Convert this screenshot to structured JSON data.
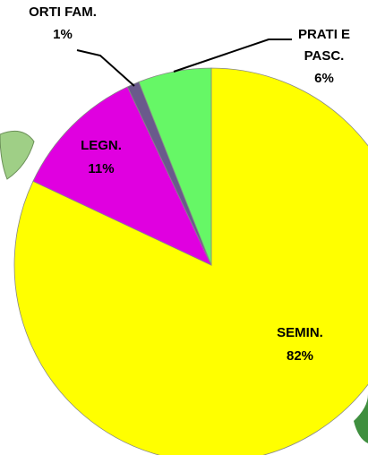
{
  "chart_data": {
    "type": "pie",
    "categories": [
      "SEMIN.",
      "LEGN.",
      "ORTI FAM.",
      "PRATI E PASC."
    ],
    "values": [
      82,
      11,
      1,
      6
    ],
    "value_labels": [
      "82%",
      "11%",
      "1%",
      "6%"
    ],
    "colors": [
      "#ffff00",
      "#e000e0",
      "#6a5a8c",
      "#66f766"
    ]
  }
}
